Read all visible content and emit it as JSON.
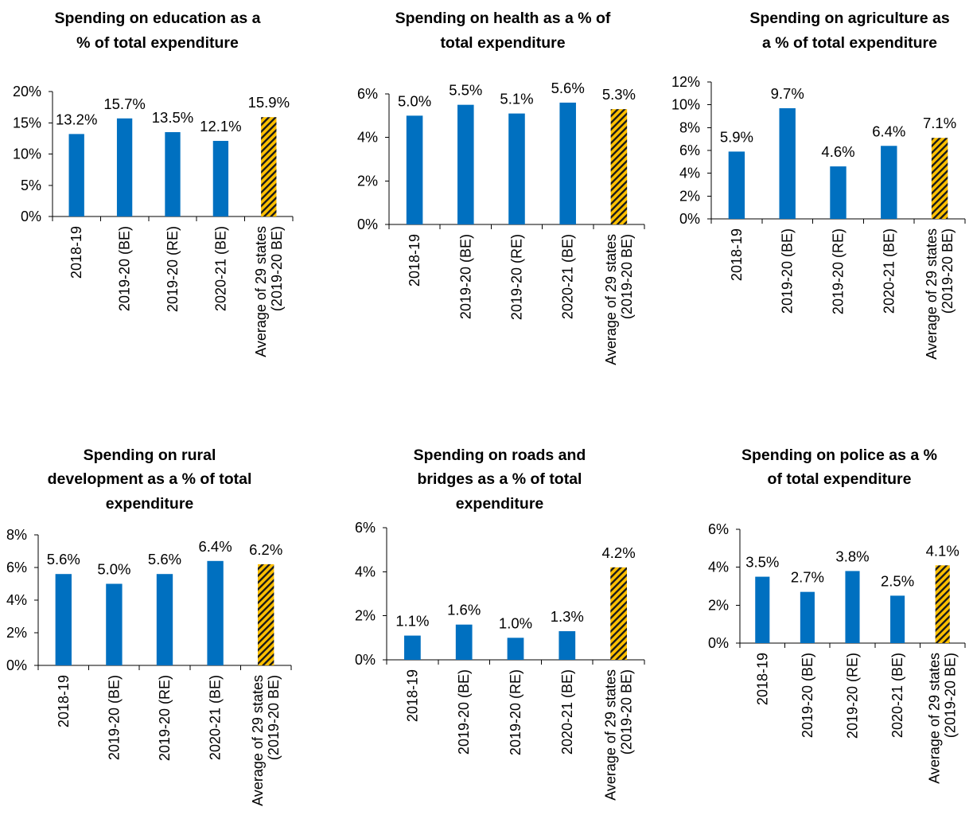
{
  "chart_data": [
    {
      "type": "bar",
      "title": [
        "Spending on education as a",
        "% of total expenditure"
      ],
      "categories": [
        [
          "2018-19"
        ],
        [
          "2019-20 (BE)"
        ],
        [
          "2019-20 (RE)"
        ],
        [
          "2020-21 (BE)"
        ],
        [
          "Average of 29 states",
          "(2019-20 BE)"
        ]
      ],
      "values": [
        13.2,
        15.7,
        13.5,
        12.1,
        15.9
      ],
      "value_labels": [
        "13.2%",
        "15.7%",
        "13.5%",
        "12.1%",
        "15.9%"
      ],
      "yticks": [
        "0%",
        "5%",
        "10%",
        "15%",
        "20%"
      ],
      "ylim": [
        0,
        20
      ],
      "bar_colors": [
        "#0070c0",
        "#0070c0",
        "#0070c0",
        "#0070c0",
        "hatched-#ffc000"
      ],
      "grid": false
    },
    {
      "type": "bar",
      "title": [
        "Spending on health as a % of",
        "total expenditure"
      ],
      "categories": [
        [
          "2018-19"
        ],
        [
          "2019-20 (BE)"
        ],
        [
          "2019-20 (RE)"
        ],
        [
          "2020-21 (BE)"
        ],
        [
          "Average of 29 states",
          "(2019-20 BE)"
        ]
      ],
      "values": [
        5.0,
        5.5,
        5.1,
        5.6,
        5.3
      ],
      "value_labels": [
        "5.0%",
        "5.5%",
        "5.1%",
        "5.6%",
        "5.3%"
      ],
      "yticks": [
        "0%",
        "2%",
        "4%",
        "6%"
      ],
      "ylim": [
        0,
        6
      ],
      "bar_colors": [
        "#0070c0",
        "#0070c0",
        "#0070c0",
        "#0070c0",
        "hatched-#ffc000"
      ],
      "grid": false
    },
    {
      "type": "bar",
      "title": [
        "Spending on agriculture as",
        "a % of total expenditure"
      ],
      "categories": [
        [
          "2018-19"
        ],
        [
          "2019-20 (BE)"
        ],
        [
          "2019-20 (RE)"
        ],
        [
          "2020-21 (BE)"
        ],
        [
          "Average of 29 states",
          "(2019-20 BE)"
        ]
      ],
      "values": [
        5.9,
        9.7,
        4.6,
        6.4,
        7.1
      ],
      "value_labels": [
        "5.9%",
        "9.7%",
        "4.6%",
        "6.4%",
        "7.1%"
      ],
      "yticks": [
        "0%",
        "2%",
        "4%",
        "6%",
        "8%",
        "10%",
        "12%"
      ],
      "ylim": [
        0,
        12
      ],
      "bar_colors": [
        "#0070c0",
        "#0070c0",
        "#0070c0",
        "#0070c0",
        "hatched-#ffc000"
      ],
      "grid": false
    },
    {
      "type": "bar",
      "title": [
        "Spending on rural",
        "development as a % of total",
        "expenditure"
      ],
      "categories": [
        [
          "2018-19"
        ],
        [
          "2019-20 (BE)"
        ],
        [
          "2019-20 (RE)"
        ],
        [
          "2020-21 (BE)"
        ],
        [
          "Average of 29 states",
          "(2019-20 BE)"
        ]
      ],
      "values": [
        5.6,
        5.0,
        5.6,
        6.4,
        6.2
      ],
      "value_labels": [
        "5.6%",
        "5.0%",
        "5.6%",
        "6.4%",
        "6.2%"
      ],
      "yticks": [
        "0%",
        "2%",
        "4%",
        "6%",
        "8%"
      ],
      "ylim": [
        0,
        8
      ],
      "bar_colors": [
        "#0070c0",
        "#0070c0",
        "#0070c0",
        "#0070c0",
        "hatched-#ffc000"
      ],
      "grid": false
    },
    {
      "type": "bar",
      "title": [
        "Spending on roads and",
        "bridges as a % of total",
        "expenditure"
      ],
      "categories": [
        [
          "2018-19"
        ],
        [
          "2019-20 (BE)"
        ],
        [
          "2019-20 (RE)"
        ],
        [
          "2020-21 (BE)"
        ],
        [
          "Average of 29 states",
          "(2019-20 BE)"
        ]
      ],
      "values": [
        1.1,
        1.6,
        1.0,
        1.3,
        4.2
      ],
      "value_labels": [
        "1.1%",
        "1.6%",
        "1.0%",
        "1.3%",
        "4.2%"
      ],
      "yticks": [
        "0%",
        "2%",
        "4%",
        "6%"
      ],
      "ylim": [
        0,
        6
      ],
      "bar_colors": [
        "#0070c0",
        "#0070c0",
        "#0070c0",
        "#0070c0",
        "hatched-#ffc000"
      ],
      "grid": false
    },
    {
      "type": "bar",
      "title": [
        "Spending on police as a %",
        "of total expenditure"
      ],
      "categories": [
        [
          "2018-19"
        ],
        [
          "2019-20 (BE)"
        ],
        [
          "2019-20 (RE)"
        ],
        [
          "2020-21 (BE)"
        ],
        [
          "Average of 29 states",
          "(2019-20 BE)"
        ]
      ],
      "values": [
        3.5,
        2.7,
        3.8,
        2.5,
        4.1
      ],
      "value_labels": [
        "3.5%",
        "2.7%",
        "3.8%",
        "2.5%",
        "4.1%"
      ],
      "yticks": [
        "0%",
        "2%",
        "4%",
        "6%"
      ],
      "ylim": [
        0,
        6
      ],
      "bar_colors": [
        "#0070c0",
        "#0070c0",
        "#0070c0",
        "#0070c0",
        "hatched-#ffc000"
      ],
      "grid": false
    }
  ]
}
